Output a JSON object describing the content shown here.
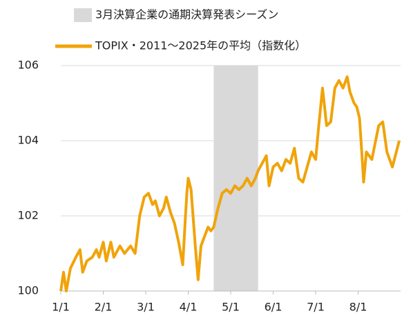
{
  "chart_data": {
    "type": "line",
    "x": [
      "1/1",
      "1/3",
      "1/5",
      "1/8",
      "1/12",
      "1/15",
      "1/17",
      "1/20",
      "1/24",
      "1/27",
      "1/29",
      "2/1",
      "2/3",
      "2/6",
      "2/8",
      "2/12",
      "2/15",
      "2/19",
      "2/22",
      "2/25",
      "2/28",
      "3/3",
      "3/6",
      "3/8",
      "3/11",
      "3/14",
      "3/16",
      "3/19",
      "3/22",
      "3/25",
      "3/28",
      "3/30",
      "3/31",
      "4/1",
      "4/3",
      "4/6",
      "4/8",
      "4/10",
      "4/12",
      "4/15",
      "4/17",
      "4/19",
      "4/22",
      "4/25",
      "4/28",
      "5/1",
      "5/4",
      "5/7",
      "5/10",
      "5/13",
      "5/16",
      "5/19",
      "5/21",
      "5/24",
      "5/27",
      "5/29",
      "6/1",
      "6/4",
      "6/7",
      "6/10",
      "6/13",
      "6/16",
      "6/19",
      "6/22",
      "6/25",
      "6/28",
      "7/1",
      "7/3",
      "7/6",
      "7/9",
      "7/12",
      "7/15",
      "7/18",
      "7/21",
      "7/24",
      "7/26",
      "7/29",
      "7/31",
      "8/2",
      "8/4",
      "8/5",
      "8/7",
      "8/11",
      "8/16",
      "8/19",
      "8/22",
      "8/26",
      "8/31"
    ],
    "series": [
      {
        "name": "TOPIX・2011～2025年の平均（指数化）",
        "color": "#f0a30a",
        "values": [
          100,
          100.5,
          100.0,
          100.6,
          100.9,
          101.1,
          100.5,
          100.8,
          100.9,
          101.1,
          100.9,
          101.3,
          100.8,
          101.3,
          100.9,
          101.2,
          101.0,
          101.2,
          101.0,
          102.0,
          102.5,
          102.6,
          102.3,
          102.4,
          102.0,
          102.2,
          102.5,
          102.1,
          101.8,
          101.3,
          100.7,
          102.0,
          102.6,
          103.0,
          102.7,
          101.2,
          100.3,
          101.2,
          101.4,
          101.7,
          101.6,
          101.7,
          102.2,
          102.6,
          102.7,
          102.6,
          102.8,
          102.7,
          102.8,
          103.0,
          102.8,
          103.0,
          103.2,
          103.4,
          103.6,
          102.8,
          103.3,
          103.4,
          103.2,
          103.5,
          103.4,
          103.8,
          103.0,
          102.9,
          103.3,
          103.7,
          103.5,
          104.3,
          105.4,
          104.4,
          104.5,
          105.4,
          105.6,
          105.4,
          105.7,
          105.3,
          105.0,
          104.9,
          104.6,
          103.5,
          102.9,
          103.7,
          103.5,
          104.4,
          104.5,
          103.7,
          103.3,
          104.0
        ]
      }
    ],
    "shade": {
      "start": "4/19",
      "end": "5/21",
      "label": "3月決算企業の通期決算発表シーズン",
      "color": "#d9d9d9"
    },
    "xlim": [
      "1/1",
      "8/31"
    ],
    "xticks": [
      "1/1",
      "2/1",
      "3/1",
      "4/1",
      "5/1",
      "6/1",
      "7/1",
      "8/1"
    ],
    "ylim": [
      100,
      106
    ],
    "yticks": [
      100,
      102,
      104,
      106
    ],
    "grid": true
  }
}
